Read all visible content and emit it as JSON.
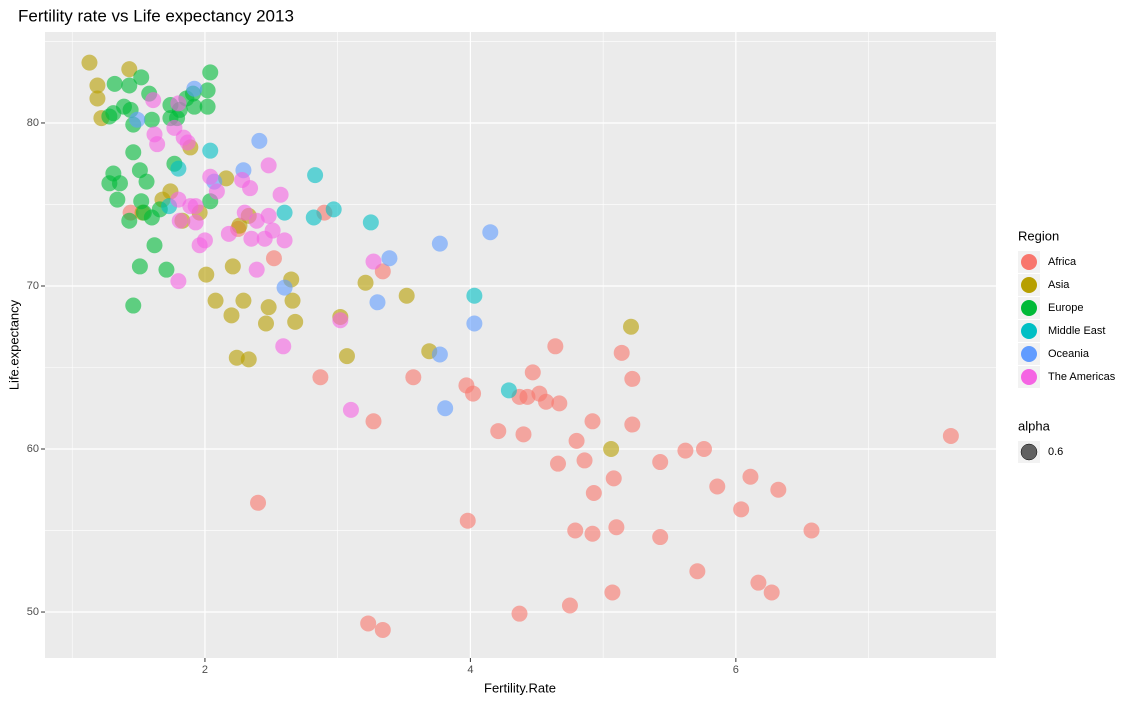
{
  "chart_data": {
    "type": "scatter",
    "title": "Fertility rate vs Life expectancy 2013",
    "x_label": "Fertility.Rate",
    "y_label": "Life.expectancy",
    "xlim": [
      0.795,
      7.96
    ],
    "ylim": [
      47.18,
      85.58
    ],
    "xticks": [
      2,
      4,
      6
    ],
    "yticks": [
      50,
      60,
      70,
      80
    ],
    "grid": true,
    "legend_position": "right",
    "legend_title": "Region",
    "alpha_legend": {
      "title": "alpha",
      "value": 0.6
    },
    "series": [
      {
        "name": "Africa",
        "color": "#F8766D",
        "x": [
          7.62,
          6.57,
          6.32,
          6.11,
          6.04,
          6.17,
          6.27,
          5.86,
          5.76,
          5.71,
          5.62,
          5.43,
          5.43,
          5.22,
          5.22,
          5.14,
          5.1,
          5.08,
          5.07,
          4.92,
          4.93,
          4.92,
          4.86,
          4.8,
          4.79,
          4.75,
          4.67,
          4.66,
          4.64,
          4.57,
          4.52,
          4.47,
          4.43,
          4.37,
          4.4,
          4.37,
          4.21,
          4.02,
          3.97,
          3.98,
          3.57,
          3.34,
          3.27,
          3.23,
          3.34,
          2.87,
          2.9,
          2.4,
          2.52,
          2.25,
          1.44
        ],
        "values": [
          60.8,
          55.0,
          57.5,
          58.3,
          56.3,
          51.8,
          51.2,
          57.7,
          60.0,
          52.5,
          59.9,
          59.2,
          54.6,
          64.3,
          61.5,
          65.9,
          55.2,
          58.2,
          51.2,
          61.7,
          57.3,
          54.8,
          59.3,
          60.5,
          55.0,
          50.4,
          62.8,
          59.1,
          66.3,
          62.9,
          63.4,
          64.7,
          63.2,
          63.2,
          60.9,
          49.9,
          61.1,
          63.4,
          63.9,
          55.6,
          64.4,
          70.9,
          61.7,
          49.3,
          48.9,
          64.4,
          74.5,
          56.7,
          71.7,
          73.5,
          74.5
        ]
      },
      {
        "name": "Asia",
        "color": "#B79F00",
        "x": [
          1.13,
          1.43,
          1.19,
          1.19,
          1.22,
          1.89,
          1.74,
          1.68,
          1.83,
          1.96,
          2.16,
          1.53,
          2.01,
          2.08,
          2.21,
          2.2,
          2.29,
          2.24,
          2.33,
          2.46,
          2.48,
          2.65,
          2.66,
          2.68,
          2.33,
          2.26,
          3.02,
          3.07,
          3.21,
          3.52,
          3.69,
          5.06,
          5.21
        ],
        "values": [
          83.7,
          83.3,
          82.3,
          81.5,
          80.3,
          78.5,
          75.8,
          75.3,
          74.0,
          74.5,
          76.6,
          74.5,
          70.7,
          69.1,
          71.2,
          68.2,
          69.1,
          65.6,
          65.5,
          67.7,
          68.7,
          70.4,
          69.1,
          67.8,
          74.3,
          73.7,
          68.1,
          65.7,
          70.2,
          69.4,
          66.0,
          60.0,
          67.5
        ]
      },
      {
        "name": "Europe",
        "color": "#00BA38",
        "x": [
          2.04,
          1.32,
          1.43,
          1.52,
          1.58,
          2.02,
          2.02,
          1.91,
          1.92,
          1.86,
          1.74,
          1.81,
          1.79,
          1.74,
          1.6,
          1.28,
          1.31,
          1.39,
          1.44,
          1.46,
          1.46,
          1.51,
          1.56,
          1.77,
          1.31,
          1.28,
          1.36,
          1.34,
          1.52,
          1.54,
          1.43,
          1.6,
          1.66,
          2.04,
          1.62,
          1.51,
          1.71,
          1.46
        ],
        "values": [
          83.1,
          82.4,
          82.3,
          82.8,
          81.8,
          82.0,
          81.0,
          81.8,
          81.0,
          81.5,
          81.1,
          80.8,
          80.3,
          80.3,
          80.2,
          80.4,
          80.6,
          81.0,
          80.8,
          79.9,
          78.2,
          77.1,
          76.4,
          77.5,
          76.9,
          76.3,
          76.3,
          75.3,
          75.2,
          74.5,
          74.0,
          74.2,
          74.7,
          75.2,
          72.5,
          71.2,
          71.0,
          68.8
        ]
      },
      {
        "name": "Middle East",
        "color": "#00BFC4",
        "x": [
          2.04,
          2.83,
          2.97,
          2.82,
          2.6,
          3.25,
          1.8,
          1.73,
          4.03,
          4.29
        ],
        "values": [
          78.3,
          76.8,
          74.7,
          74.2,
          74.5,
          73.9,
          77.2,
          74.9,
          69.4,
          63.6
        ]
      },
      {
        "name": "Oceania",
        "color": "#619CFF",
        "x": [
          1.92,
          2.41,
          2.29,
          2.07,
          1.49,
          2.6,
          3.39,
          3.3,
          3.77,
          4.15,
          4.03,
          3.77,
          3.81
        ],
        "values": [
          82.1,
          78.9,
          77.1,
          76.4,
          80.2,
          69.9,
          71.7,
          69.0,
          72.6,
          73.3,
          67.7,
          65.8,
          62.5
        ]
      },
      {
        "name": "The Americas",
        "color": "#F564E3",
        "x": [
          1.61,
          1.8,
          1.77,
          1.62,
          1.64,
          1.84,
          1.87,
          2.48,
          2.34,
          2.28,
          2.04,
          2.09,
          2.57,
          1.8,
          1.89,
          1.93,
          2.3,
          2.48,
          2.39,
          2.18,
          2.51,
          2.6,
          2.45,
          2.35,
          2.0,
          1.96,
          1.81,
          1.93,
          2.39,
          3.27,
          1.8,
          2.59,
          3.02,
          3.1
        ],
        "values": [
          81.4,
          81.2,
          79.7,
          79.3,
          78.7,
          79.1,
          78.8,
          77.4,
          76.0,
          76.5,
          76.7,
          75.8,
          75.6,
          75.3,
          74.9,
          74.9,
          74.5,
          74.3,
          74.0,
          73.2,
          73.4,
          72.8,
          72.9,
          72.9,
          72.8,
          72.5,
          74.0,
          73.9,
          71.0,
          71.5,
          70.3,
          66.3,
          67.9,
          62.4
        ]
      }
    ]
  }
}
